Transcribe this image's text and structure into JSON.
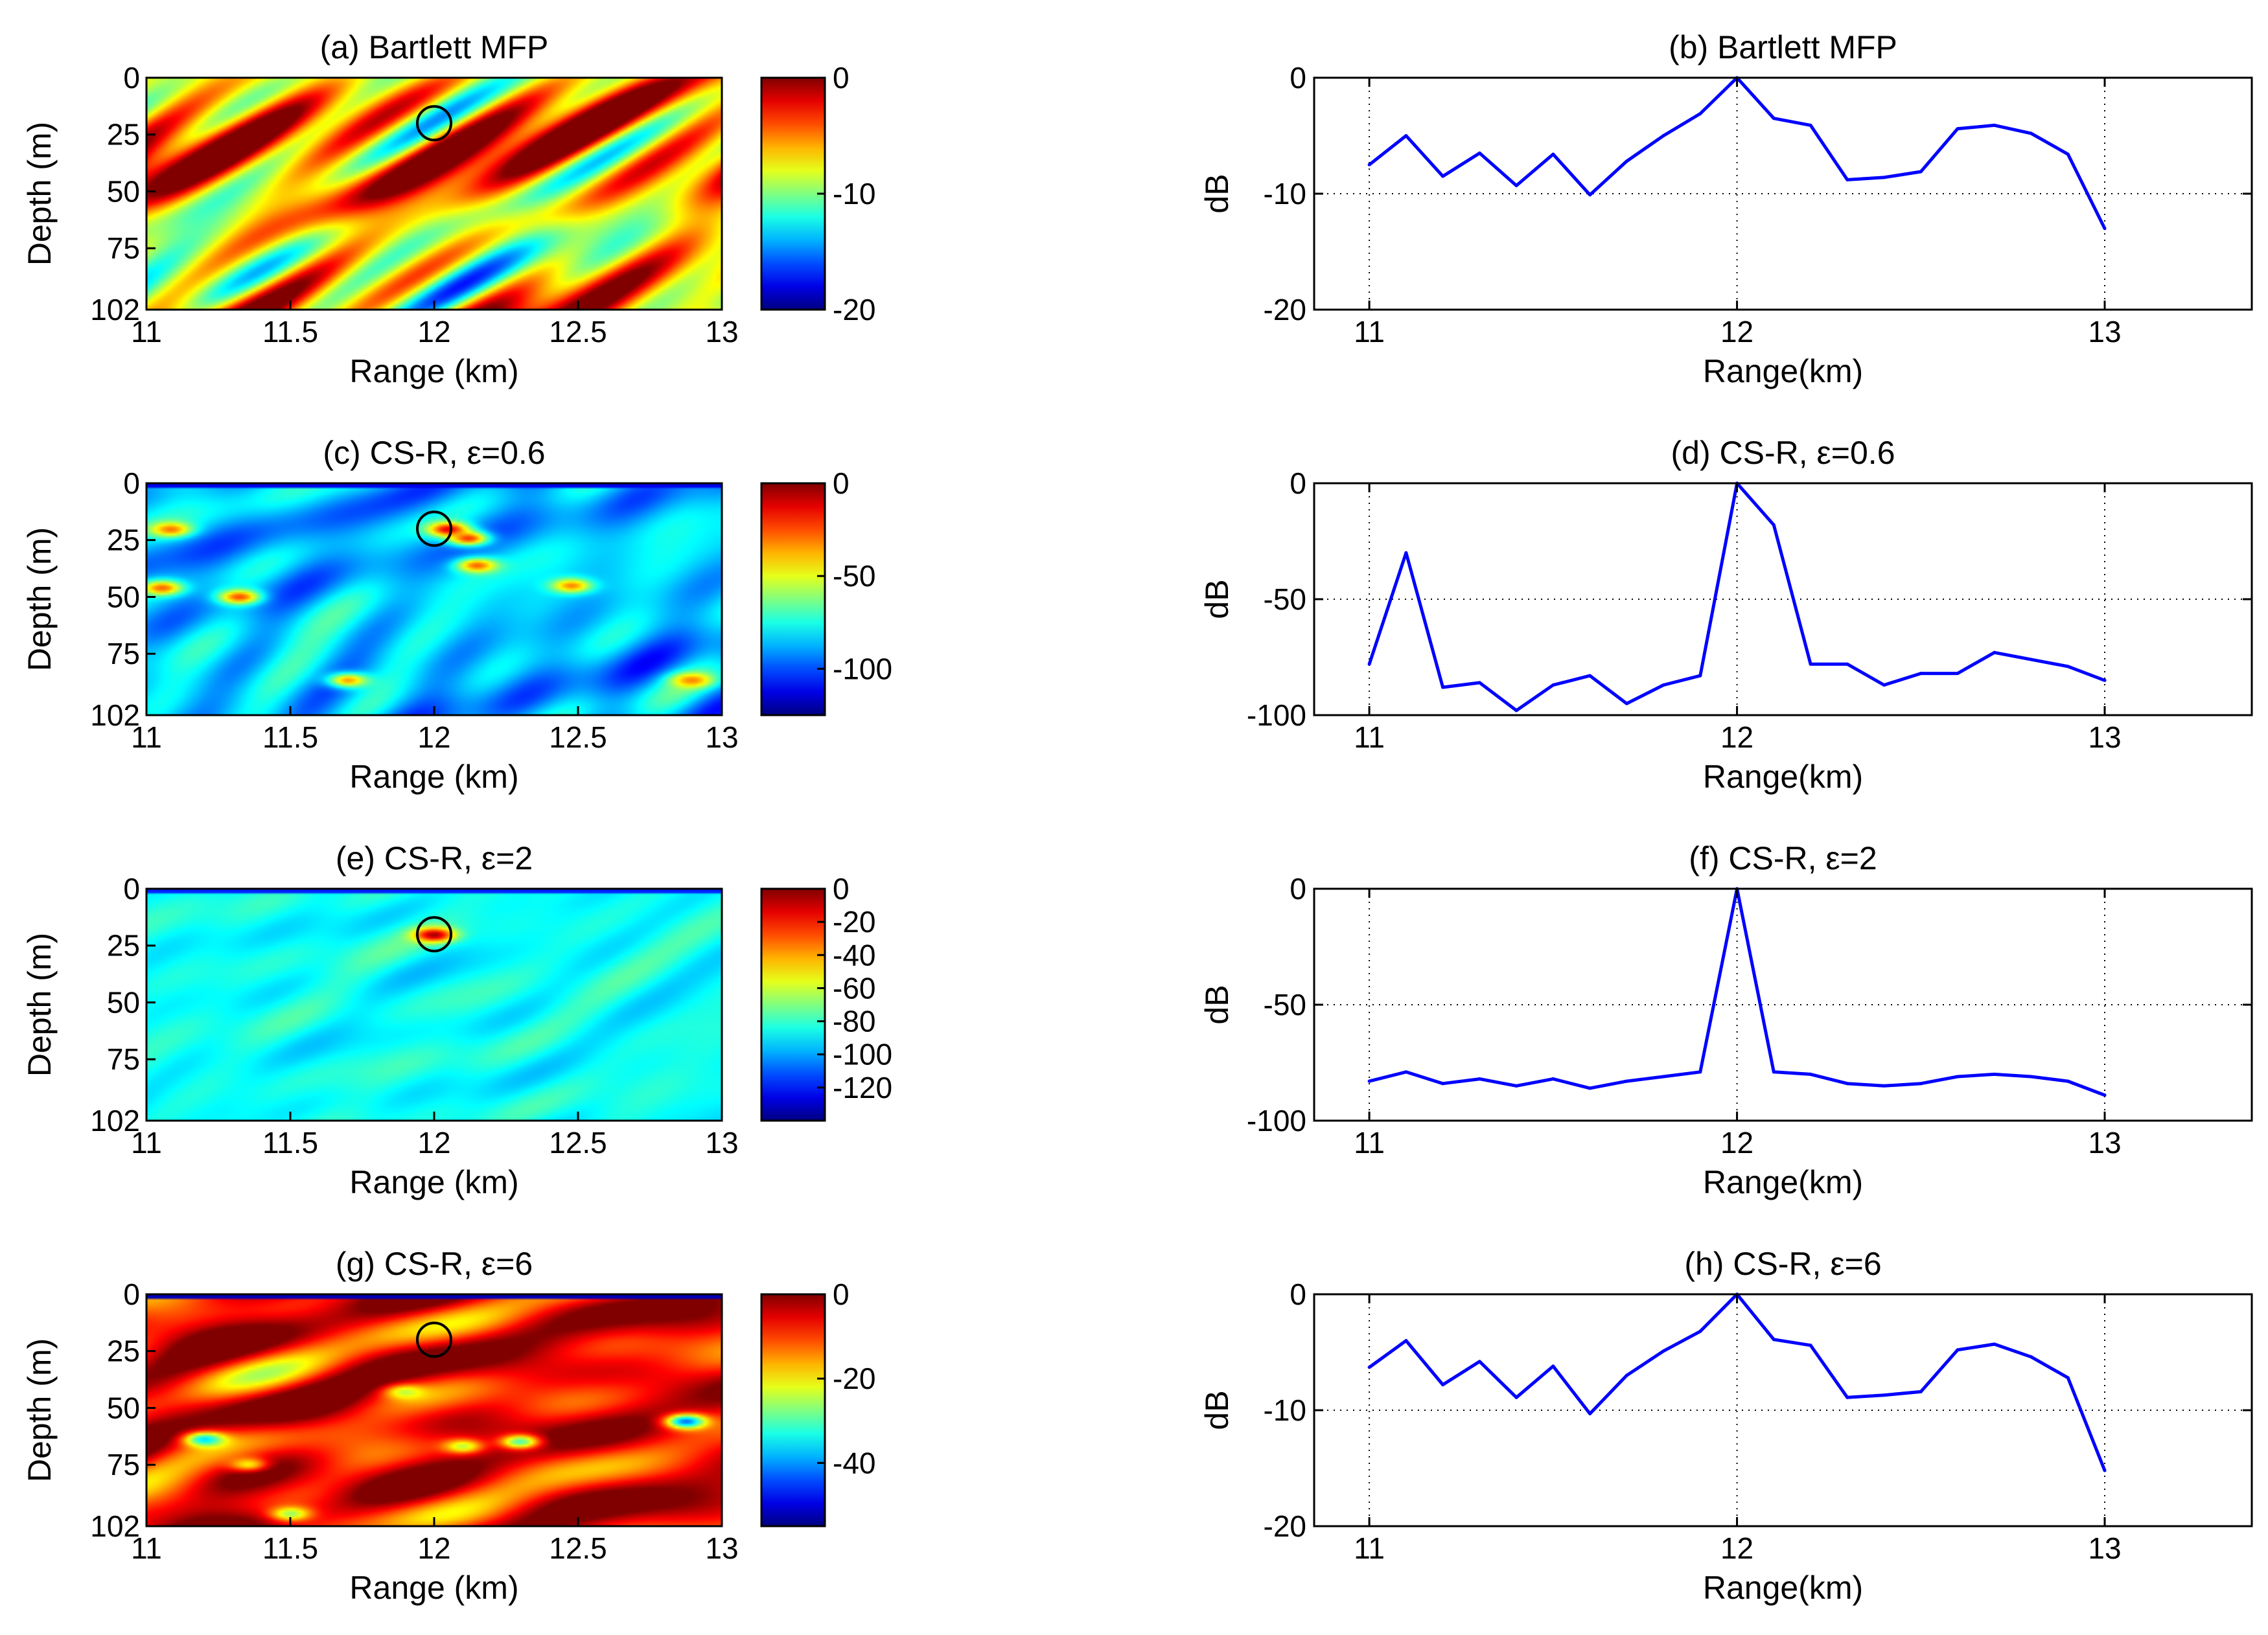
{
  "figure": {
    "heatmap_xlabel": "Range (km)",
    "heatmap_ylabel": "Depth (m)",
    "line_xlabel": "Range(km)",
    "line_ylabel": "dB"
  },
  "chart_data": [
    {
      "id": "a",
      "type": "heatmap",
      "title": "(a) Bartlett MFP",
      "xlabel": "Range (km)",
      "ylabel": "Depth (m)",
      "xlim": [
        11,
        13
      ],
      "ylim": [
        0,
        102
      ],
      "xticks": [
        "11",
        "11.5",
        "12",
        "12.5",
        "13"
      ],
      "yticks": [
        "0",
        "25",
        "50",
        "75",
        "102"
      ],
      "colorbar": {
        "range": [
          -20,
          0
        ],
        "ticks": [
          "0",
          "-10",
          "-20"
        ]
      },
      "field": {
        "base": -6,
        "amp": 6,
        "surface": null,
        "seed": 1
      },
      "spots": [],
      "source": {
        "range": 12,
        "depth": 20
      }
    },
    {
      "id": "b",
      "type": "line",
      "title": "(b) Bartlett MFP",
      "xlabel": "Range(km)",
      "ylabel": "dB",
      "xlim": [
        10.85,
        13.4
      ],
      "ylim": [
        -20,
        0
      ],
      "xticks": [
        "11",
        "12",
        "13"
      ],
      "yticks": [
        "0",
        "-10",
        "-20"
      ],
      "grid_x": [
        11,
        12,
        13
      ],
      "grid_y": [
        -10
      ],
      "series": [
        {
          "name": "dB",
          "color": "#0000ff",
          "x": [
            11,
            11.1,
            11.2,
            11.3,
            11.4,
            11.5,
            11.6,
            11.7,
            11.8,
            11.9,
            12,
            12.1,
            12.2,
            12.3,
            12.4,
            12.5,
            12.6,
            12.7,
            12.8,
            12.9,
            13
          ],
          "y": [
            -7.5,
            -5,
            -8.5,
            -6.5,
            -9.3,
            -6.6,
            -10.1,
            -7.2,
            -5,
            -3.1,
            0,
            -3.5,
            -4.1,
            -8.8,
            -8.6,
            -8.1,
            -4.4,
            -4.1,
            -4.8,
            -6.6,
            -13
          ]
        }
      ]
    },
    {
      "id": "c",
      "type": "heatmap",
      "title": "(c) CS-R, ε=0.6",
      "xlabel": "Range (km)",
      "ylabel": "Depth (m)",
      "xlim": [
        11,
        13
      ],
      "ylim": [
        0,
        102
      ],
      "xticks": [
        "11",
        "11.5",
        "12",
        "12.5",
        "13"
      ],
      "yticks": [
        "0",
        "25",
        "50",
        "75",
        "102"
      ],
      "colorbar": {
        "range": [
          -125,
          0
        ],
        "ticks": [
          "0",
          "-50",
          "-100"
        ]
      },
      "field": {
        "base": -86,
        "amp": 10,
        "surface": -112,
        "seed": 2
      },
      "spots": [
        {
          "range": 12.05,
          "depth": 20,
          "value": -12
        },
        {
          "range": 12.12,
          "depth": 24,
          "value": -22
        },
        {
          "range": 12.15,
          "depth": 36,
          "value": -28
        },
        {
          "range": 11.08,
          "depth": 20,
          "value": -30
        },
        {
          "range": 11.05,
          "depth": 46,
          "value": -28
        },
        {
          "range": 11.32,
          "depth": 50,
          "value": -25
        },
        {
          "range": 12.48,
          "depth": 45,
          "value": -32
        },
        {
          "range": 11.7,
          "depth": 87,
          "value": -35
        },
        {
          "range": 12.9,
          "depth": 87,
          "value": -32
        }
      ],
      "source": {
        "range": 12,
        "depth": 20
      }
    },
    {
      "id": "d",
      "type": "line",
      "title": "(d) CS-R, ε=0.6",
      "xlabel": "Range(km)",
      "ylabel": "dB",
      "xlim": [
        10.85,
        13.4
      ],
      "ylim": [
        -100,
        0
      ],
      "xticks": [
        "11",
        "12",
        "13"
      ],
      "yticks": [
        "0",
        "-50",
        "-100"
      ],
      "grid_x": [
        11,
        12,
        13
      ],
      "grid_y": [
        -50
      ],
      "series": [
        {
          "name": "dB",
          "color": "#0000ff",
          "x": [
            11,
            11.1,
            11.2,
            11.3,
            11.4,
            11.5,
            11.6,
            11.7,
            11.8,
            11.9,
            12,
            12.1,
            12.2,
            12.3,
            12.4,
            12.5,
            12.6,
            12.7,
            12.8,
            12.9,
            13
          ],
          "y": [
            -78,
            -30,
            -88,
            -86,
            -98,
            -87,
            -83,
            -95,
            -87,
            -83,
            0,
            -18,
            -78,
            -78,
            -87,
            -82,
            -82,
            -73,
            -76,
            -79,
            -85
          ]
        }
      ]
    },
    {
      "id": "e",
      "type": "heatmap",
      "title": "(e) CS-R, ε=2",
      "xlabel": "Range (km)",
      "ylabel": "Depth (m)",
      "xlim": [
        11,
        13
      ],
      "ylim": [
        0,
        102
      ],
      "xticks": [
        "11",
        "11.5",
        "12",
        "12.5",
        "13"
      ],
      "yticks": [
        "0",
        "25",
        "50",
        "75",
        "102"
      ],
      "colorbar": {
        "range": [
          -140,
          0
        ],
        "ticks": [
          "0",
          "-20",
          "-40",
          "-60",
          "-80",
          "-100",
          "-120"
        ]
      },
      "field": {
        "base": -86,
        "amp": 5,
        "surface": -118,
        "seed": 3
      },
      "spots": [
        {
          "range": 12.0,
          "depth": 20,
          "value": -5
        }
      ],
      "source": {
        "range": 12,
        "depth": 20
      }
    },
    {
      "id": "f",
      "type": "line",
      "title": "(f) CS-R, ε=2",
      "xlabel": "Range(km)",
      "ylabel": "dB",
      "xlim": [
        10.85,
        13.4
      ],
      "ylim": [
        -100,
        0
      ],
      "xticks": [
        "11",
        "12",
        "13"
      ],
      "yticks": [
        "0",
        "-50",
        "-100"
      ],
      "grid_x": [
        11,
        12,
        13
      ],
      "grid_y": [
        -50
      ],
      "series": [
        {
          "name": "dB",
          "color": "#0000ff",
          "x": [
            11,
            11.1,
            11.2,
            11.3,
            11.4,
            11.5,
            11.6,
            11.7,
            11.8,
            11.9,
            12,
            12.1,
            12.2,
            12.3,
            12.4,
            12.5,
            12.6,
            12.7,
            12.8,
            12.9,
            13
          ],
          "y": [
            -83,
            -79,
            -84,
            -82,
            -85,
            -82,
            -86,
            -83,
            -81,
            -79,
            0,
            -79,
            -80,
            -84,
            -85,
            -84,
            -81,
            -80,
            -81,
            -83,
            -89
          ]
        }
      ]
    },
    {
      "id": "g",
      "type": "heatmap",
      "title": "(g) CS-R, ε=6",
      "xlabel": "Range (km)",
      "ylabel": "Depth (m)",
      "xlim": [
        11,
        13
      ],
      "ylim": [
        0,
        102
      ],
      "xticks": [
        "11",
        "11.5",
        "12",
        "12.5",
        "13"
      ],
      "yticks": [
        "0",
        "25",
        "50",
        "75",
        "102"
      ],
      "colorbar": {
        "range": [
          -55,
          0
        ],
        "ticks": [
          "0",
          "-20",
          "-40"
        ]
      },
      "field": {
        "base": -6,
        "amp": 7,
        "surface": -52,
        "seed": 4
      },
      "spots": [
        {
          "range": 11.2,
          "depth": 64,
          "value": -36
        },
        {
          "range": 11.9,
          "depth": 43,
          "value": -24
        },
        {
          "range": 12.1,
          "depth": 67,
          "value": -24
        },
        {
          "range": 12.3,
          "depth": 65,
          "value": -30
        },
        {
          "range": 12.88,
          "depth": 56,
          "value": -42
        },
        {
          "range": 11.5,
          "depth": 97,
          "value": -26
        },
        {
          "range": 11.35,
          "depth": 75,
          "value": -20
        }
      ],
      "source": {
        "range": 12,
        "depth": 20
      }
    },
    {
      "id": "h",
      "type": "line",
      "title": "(h) CS-R, ε=6",
      "xlabel": "Range(km)",
      "ylabel": "dB",
      "xlim": [
        10.85,
        13.4
      ],
      "ylim": [
        -20,
        0
      ],
      "xticks": [
        "11",
        "12",
        "13"
      ],
      "yticks": [
        "0",
        "-10",
        "-20"
      ],
      "grid_x": [
        11,
        12,
        13
      ],
      "grid_y": [
        -10
      ],
      "series": [
        {
          "name": "dB",
          "color": "#0000ff",
          "x": [
            11,
            11.1,
            11.2,
            11.3,
            11.4,
            11.5,
            11.6,
            11.7,
            11.8,
            11.9,
            12,
            12.1,
            12.2,
            12.3,
            12.4,
            12.5,
            12.6,
            12.7,
            12.8,
            12.9,
            13
          ],
          "y": [
            -6.3,
            -4,
            -7.8,
            -5.8,
            -8.9,
            -6.2,
            -10.3,
            -7,
            -4.9,
            -3.2,
            0,
            -3.9,
            -4.4,
            -8.9,
            -8.7,
            -8.4,
            -4.8,
            -4.3,
            -5.4,
            -7.2,
            -15.2
          ]
        }
      ]
    }
  ]
}
